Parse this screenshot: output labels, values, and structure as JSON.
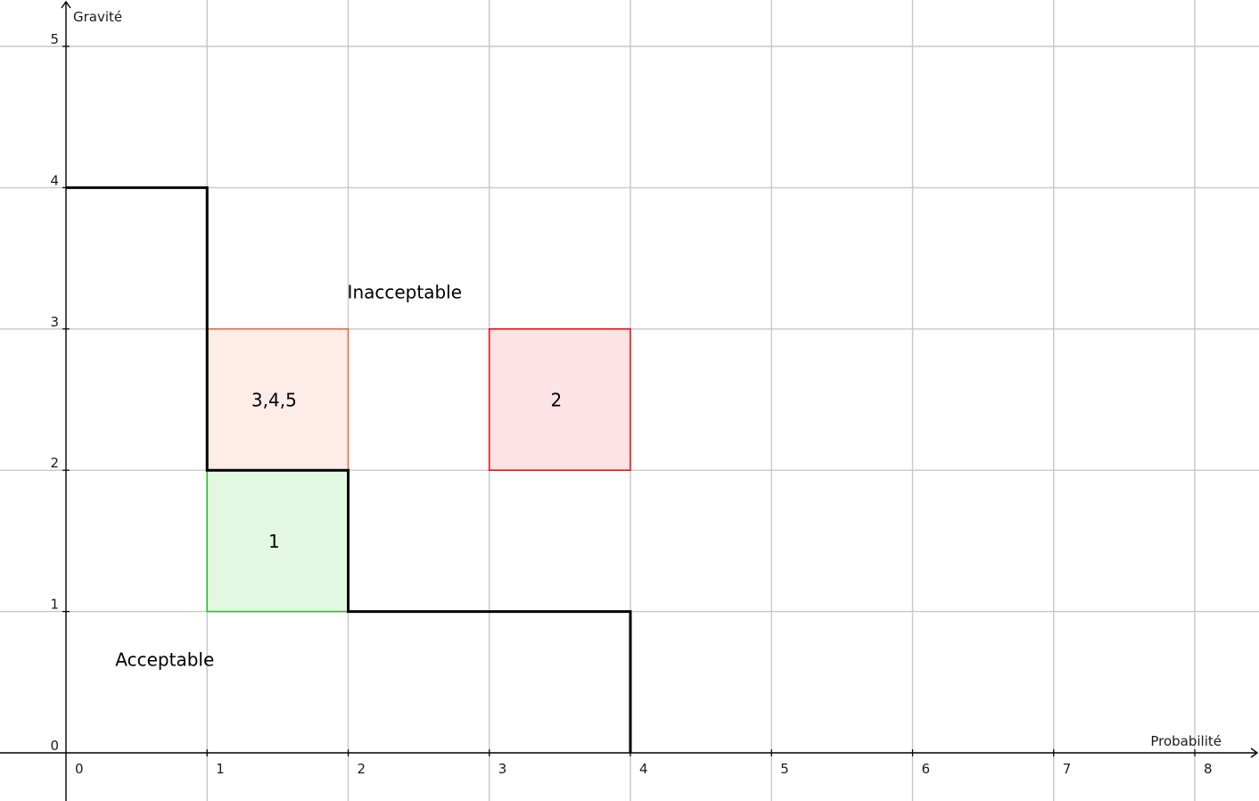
{
  "chart_data": {
    "type": "risk-matrix",
    "xlabel": "Probabilité",
    "ylabel": "Gravité",
    "xlim": [
      0,
      8
    ],
    "ylim": [
      0,
      5
    ],
    "x_ticks": [
      "0",
      "1",
      "2",
      "3",
      "4",
      "5",
      "6",
      "7",
      "8"
    ],
    "y_ticks": [
      "0",
      "1",
      "2",
      "3",
      "4",
      "5"
    ],
    "grid": true,
    "frontier": [
      [
        0,
        4
      ],
      [
        1,
        4
      ],
      [
        1,
        2
      ],
      [
        2,
        2
      ],
      [
        2,
        1
      ],
      [
        4,
        1
      ],
      [
        4,
        0
      ]
    ],
    "regions": [
      {
        "label": "Inacceptable",
        "x": 2.4,
        "y": 3.25
      },
      {
        "label": "Acceptable",
        "x": 0.7,
        "y": 0.65
      }
    ],
    "boxes": [
      {
        "label": "3,4,5",
        "x0": 1,
        "x1": 2,
        "y0": 2,
        "y1": 3,
        "fill": "#fdece7",
        "stroke": "#ec6b47"
      },
      {
        "label": "1",
        "x0": 1,
        "x1": 2,
        "y0": 1,
        "y1": 2,
        "fill": "#e3f8e0",
        "stroke": "#33bb33"
      },
      {
        "label": "2",
        "x0": 3,
        "x1": 4,
        "y0": 2,
        "y1": 3,
        "fill": "#fde3e6",
        "stroke": "#ee1111"
      }
    ]
  }
}
